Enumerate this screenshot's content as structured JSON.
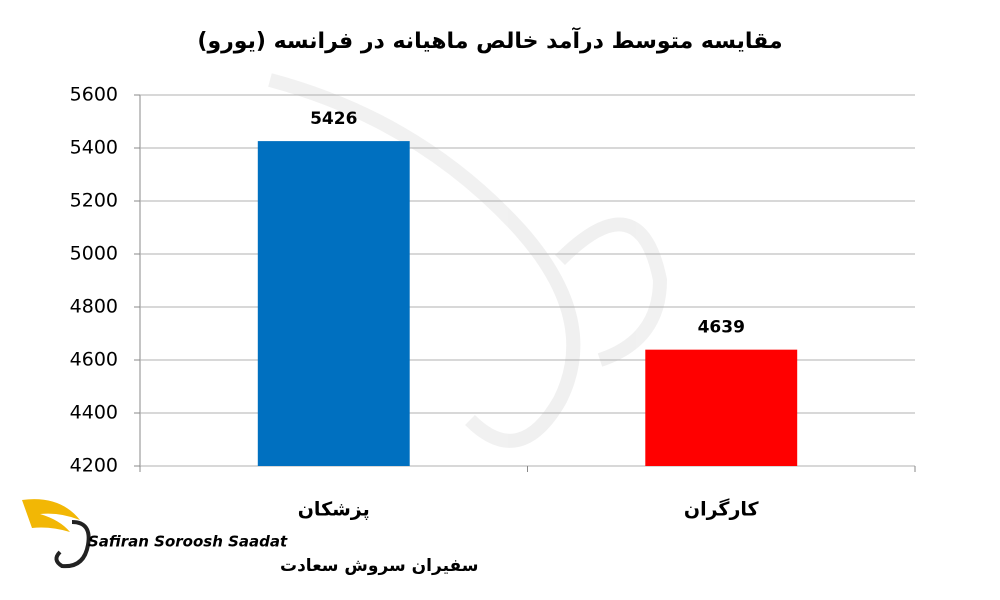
{
  "chart_data": {
    "type": "bar",
    "title": "مقایسه متوسط درآمد خالص ماهیانه در فرانسه (یورو)",
    "categories": [
      "پزشکان",
      "کارگران"
    ],
    "values": [
      5426,
      4639
    ],
    "colors": [
      "#0070c0",
      "#ff0000"
    ],
    "ylim": [
      4200,
      5600
    ],
    "yticks": [
      4200,
      4400,
      4600,
      4800,
      5000,
      5200,
      5400,
      5600
    ],
    "grid": true
  },
  "logo": {
    "name_en": "Safiran Soroosh Saadat",
    "name_fa": "سفیران سروش سعادت"
  }
}
